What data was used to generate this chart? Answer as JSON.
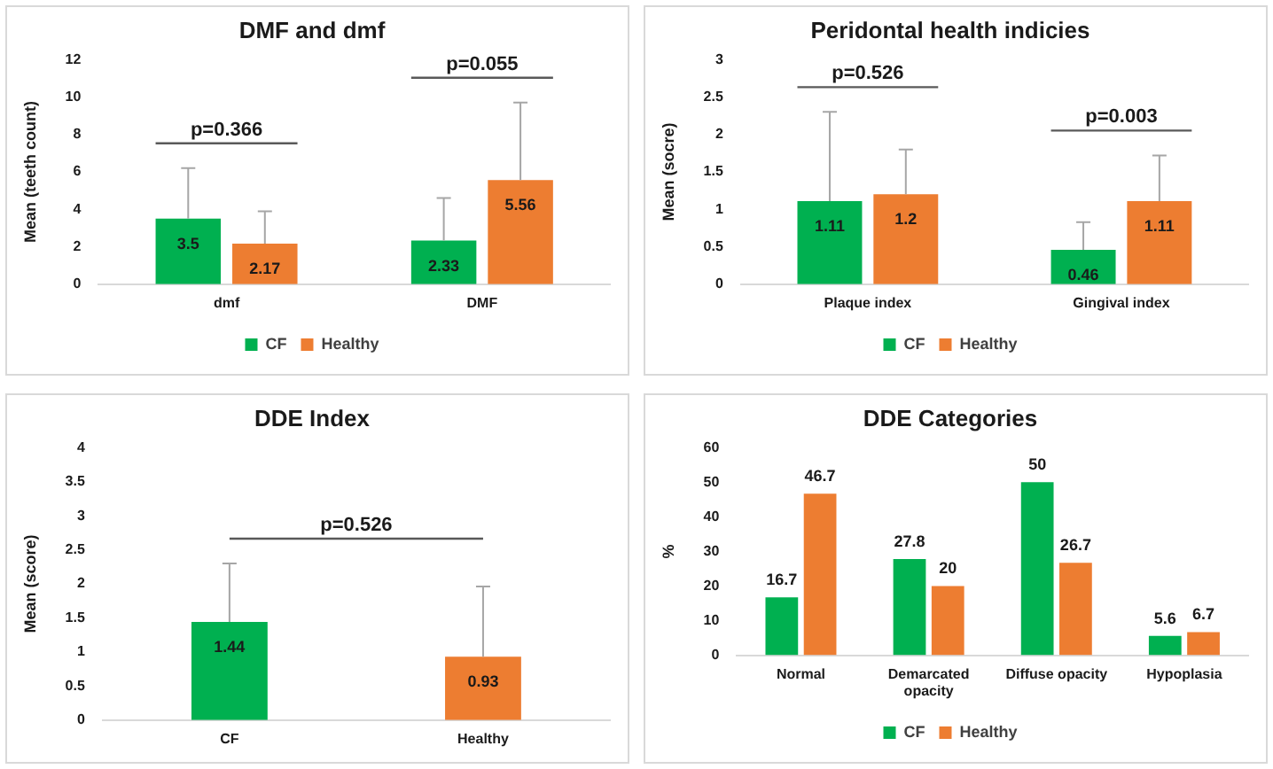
{
  "chart_data": [
    {
      "type": "bar",
      "title": "DMF and dmf",
      "ylabel": "Mean (teeth count)",
      "categories": [
        "dmf",
        "DMF"
      ],
      "series": [
        {
          "name": "CF",
          "color": "#00b050",
          "values": [
            3.5,
            2.33
          ],
          "errors": [
            [
              3.5,
              6.2
            ],
            [
              2.33,
              4.6
            ]
          ]
        },
        {
          "name": "Healthy",
          "color": "#ed7d31",
          "values": [
            2.17,
            5.56
          ],
          "errors": [
            [
              2.17,
              3.9
            ],
            [
              5.56,
              9.7
            ]
          ]
        }
      ],
      "ylim": [
        0,
        12
      ],
      "yticks": [
        0,
        2,
        4,
        6,
        8,
        10,
        12
      ],
      "grid": false,
      "legend": "bottom",
      "data_labels": true,
      "annotations": [
        "p=0.366",
        "p=0.055"
      ]
    },
    {
      "type": "bar",
      "title": "Peridontal health indicies",
      "ylabel": "Mean (socre)",
      "categories": [
        "Plaque index",
        "Gingival index"
      ],
      "series": [
        {
          "name": "CF",
          "color": "#00b050",
          "values": [
            1.11,
            0.46
          ],
          "errors": [
            [
              1.11,
              2.3
            ],
            [
              0.46,
              0.83
            ]
          ]
        },
        {
          "name": "Healthy",
          "color": "#ed7d31",
          "values": [
            1.2,
            1.11
          ],
          "errors": [
            [
              1.2,
              1.8
            ],
            [
              1.11,
              1.72
            ]
          ]
        }
      ],
      "ylim": [
        0,
        3
      ],
      "yticks": [
        0,
        0.5,
        1,
        1.5,
        2,
        2.5,
        3
      ],
      "grid": false,
      "legend": "bottom",
      "data_labels": true,
      "annotations": [
        "p=0.526",
        "p=0.003"
      ]
    },
    {
      "type": "bar",
      "title": "DDE Index",
      "ylabel": "Mean (score)",
      "categories": [
        "CF",
        "Healthy"
      ],
      "values": [
        1.44,
        0.93
      ],
      "colors": [
        "#00b050",
        "#ed7d31"
      ],
      "errors": [
        [
          1.44,
          2.3
        ],
        [
          0.93,
          1.96
        ]
      ],
      "ylim": [
        0,
        4
      ],
      "yticks": [
        0,
        0.5,
        1,
        1.5,
        2,
        2.5,
        3,
        3.5,
        4
      ],
      "grid": false,
      "legend": false,
      "data_labels": true,
      "annotations": [
        "p=0.526"
      ]
    },
    {
      "type": "bar",
      "title": "DDE Categories",
      "ylabel": "%",
      "categories": [
        "Normal",
        "Demarcated opacity",
        "Diffuse opacity",
        "Hypoplasia"
      ],
      "series": [
        {
          "name": "CF",
          "color": "#00b050",
          "values": [
            16.7,
            27.8,
            50,
            5.6
          ]
        },
        {
          "name": "Healthy",
          "color": "#ed7d31",
          "values": [
            46.7,
            20,
            26.7,
            6.7
          ]
        }
      ],
      "ylim": [
        0,
        60
      ],
      "yticks": [
        0,
        10,
        20,
        30,
        40,
        50,
        60
      ],
      "grid": false,
      "legend": "bottom",
      "data_labels": true
    }
  ]
}
